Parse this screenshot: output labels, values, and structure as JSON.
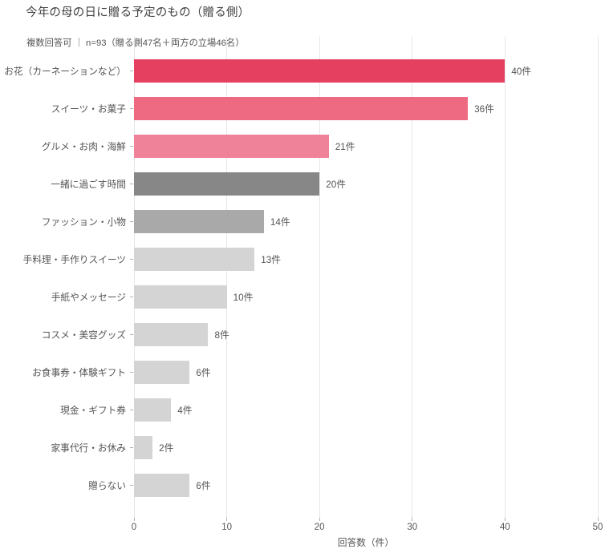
{
  "title": "今年の母の日に贈る予定のもの（贈る側）",
  "subtitle": "複数回答可 ｜ n=93（贈る側47名＋両方の立場46名）",
  "chart_data": {
    "type": "bar",
    "orientation": "horizontal",
    "categories": [
      "お花（カーネーションなど）",
      "スイーツ・お菓子",
      "グルメ・お肉・海鮮",
      "一緒に過ごす時間",
      "ファッション・小物",
      "手料理・手作りスイーツ",
      "手紙やメッセージ",
      "コスメ・美容グッズ",
      "お食事券・体験ギフト",
      "現金・ギフト券",
      "家事代行・お休み",
      "贈らない"
    ],
    "values": [
      40,
      36,
      21,
      20,
      14,
      13,
      10,
      8,
      6,
      4,
      2,
      6
    ],
    "bar_colors": [
      "#e5405f",
      "#ed6a82",
      "#ef8298",
      "#878787",
      "#a9a9a9",
      "#d4d4d4",
      "#d4d4d4",
      "#d4d4d4",
      "#d4d4d4",
      "#d4d4d4",
      "#d4d4d4",
      "#d4d4d4"
    ],
    "value_suffix": "件",
    "xlabel": "回答数（件）",
    "xticks": [
      0,
      10,
      20,
      30,
      40,
      50
    ],
    "xlim": [
      0,
      50
    ],
    "grid": true,
    "gridline_color": "#e7e7e7",
    "text_color": "#555555",
    "title_color": "#404040"
  }
}
